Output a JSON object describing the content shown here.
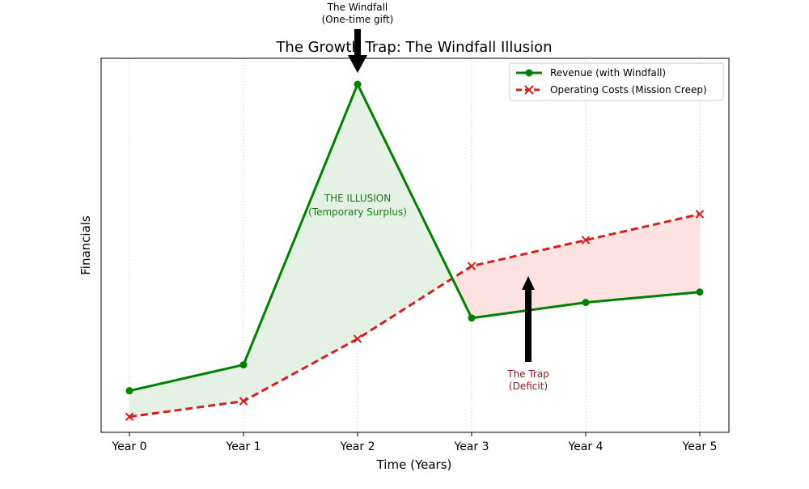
{
  "chart_data": {
    "type": "line",
    "title": "The Growth Trap: The Windfall Illusion",
    "xlabel": "Time (Years)",
    "ylabel": "Financials",
    "categories": [
      "Year 0",
      "Year 1",
      "Year 2",
      "Year 3",
      "Year 4",
      "Year 5"
    ],
    "ylim": [
      8,
      80
    ],
    "grid": "x-only dotted",
    "legend_position": "top-right",
    "series": [
      {
        "name": "Revenue (with Windfall)",
        "values": [
          16,
          21,
          75,
          30,
          33,
          35
        ],
        "color": "#008000",
        "style": "solid",
        "marker": "circle"
      },
      {
        "name": "Operating Costs (Mission Creep)",
        "values": [
          11,
          14,
          26,
          40,
          45,
          50
        ],
        "color": "#d62020",
        "style": "dashed",
        "marker": "x"
      }
    ],
    "fills": {
      "surplus_color": "#e4f1e4",
      "deficit_color": "#fde2e2"
    },
    "annotations": {
      "windfall": {
        "line1": "The Windfall",
        "line2": "(One-time gift)",
        "x_index": 2,
        "color": "#000000"
      },
      "illusion": {
        "line1": "THE ILLUSION",
        "line2": "(Temporary Surplus)",
        "color": "#1a7a1a"
      },
      "trap": {
        "line1": "The Trap",
        "line2": "(Deficit)",
        "color": "#8b1a1a",
        "x_value": 3.5
      }
    }
  }
}
